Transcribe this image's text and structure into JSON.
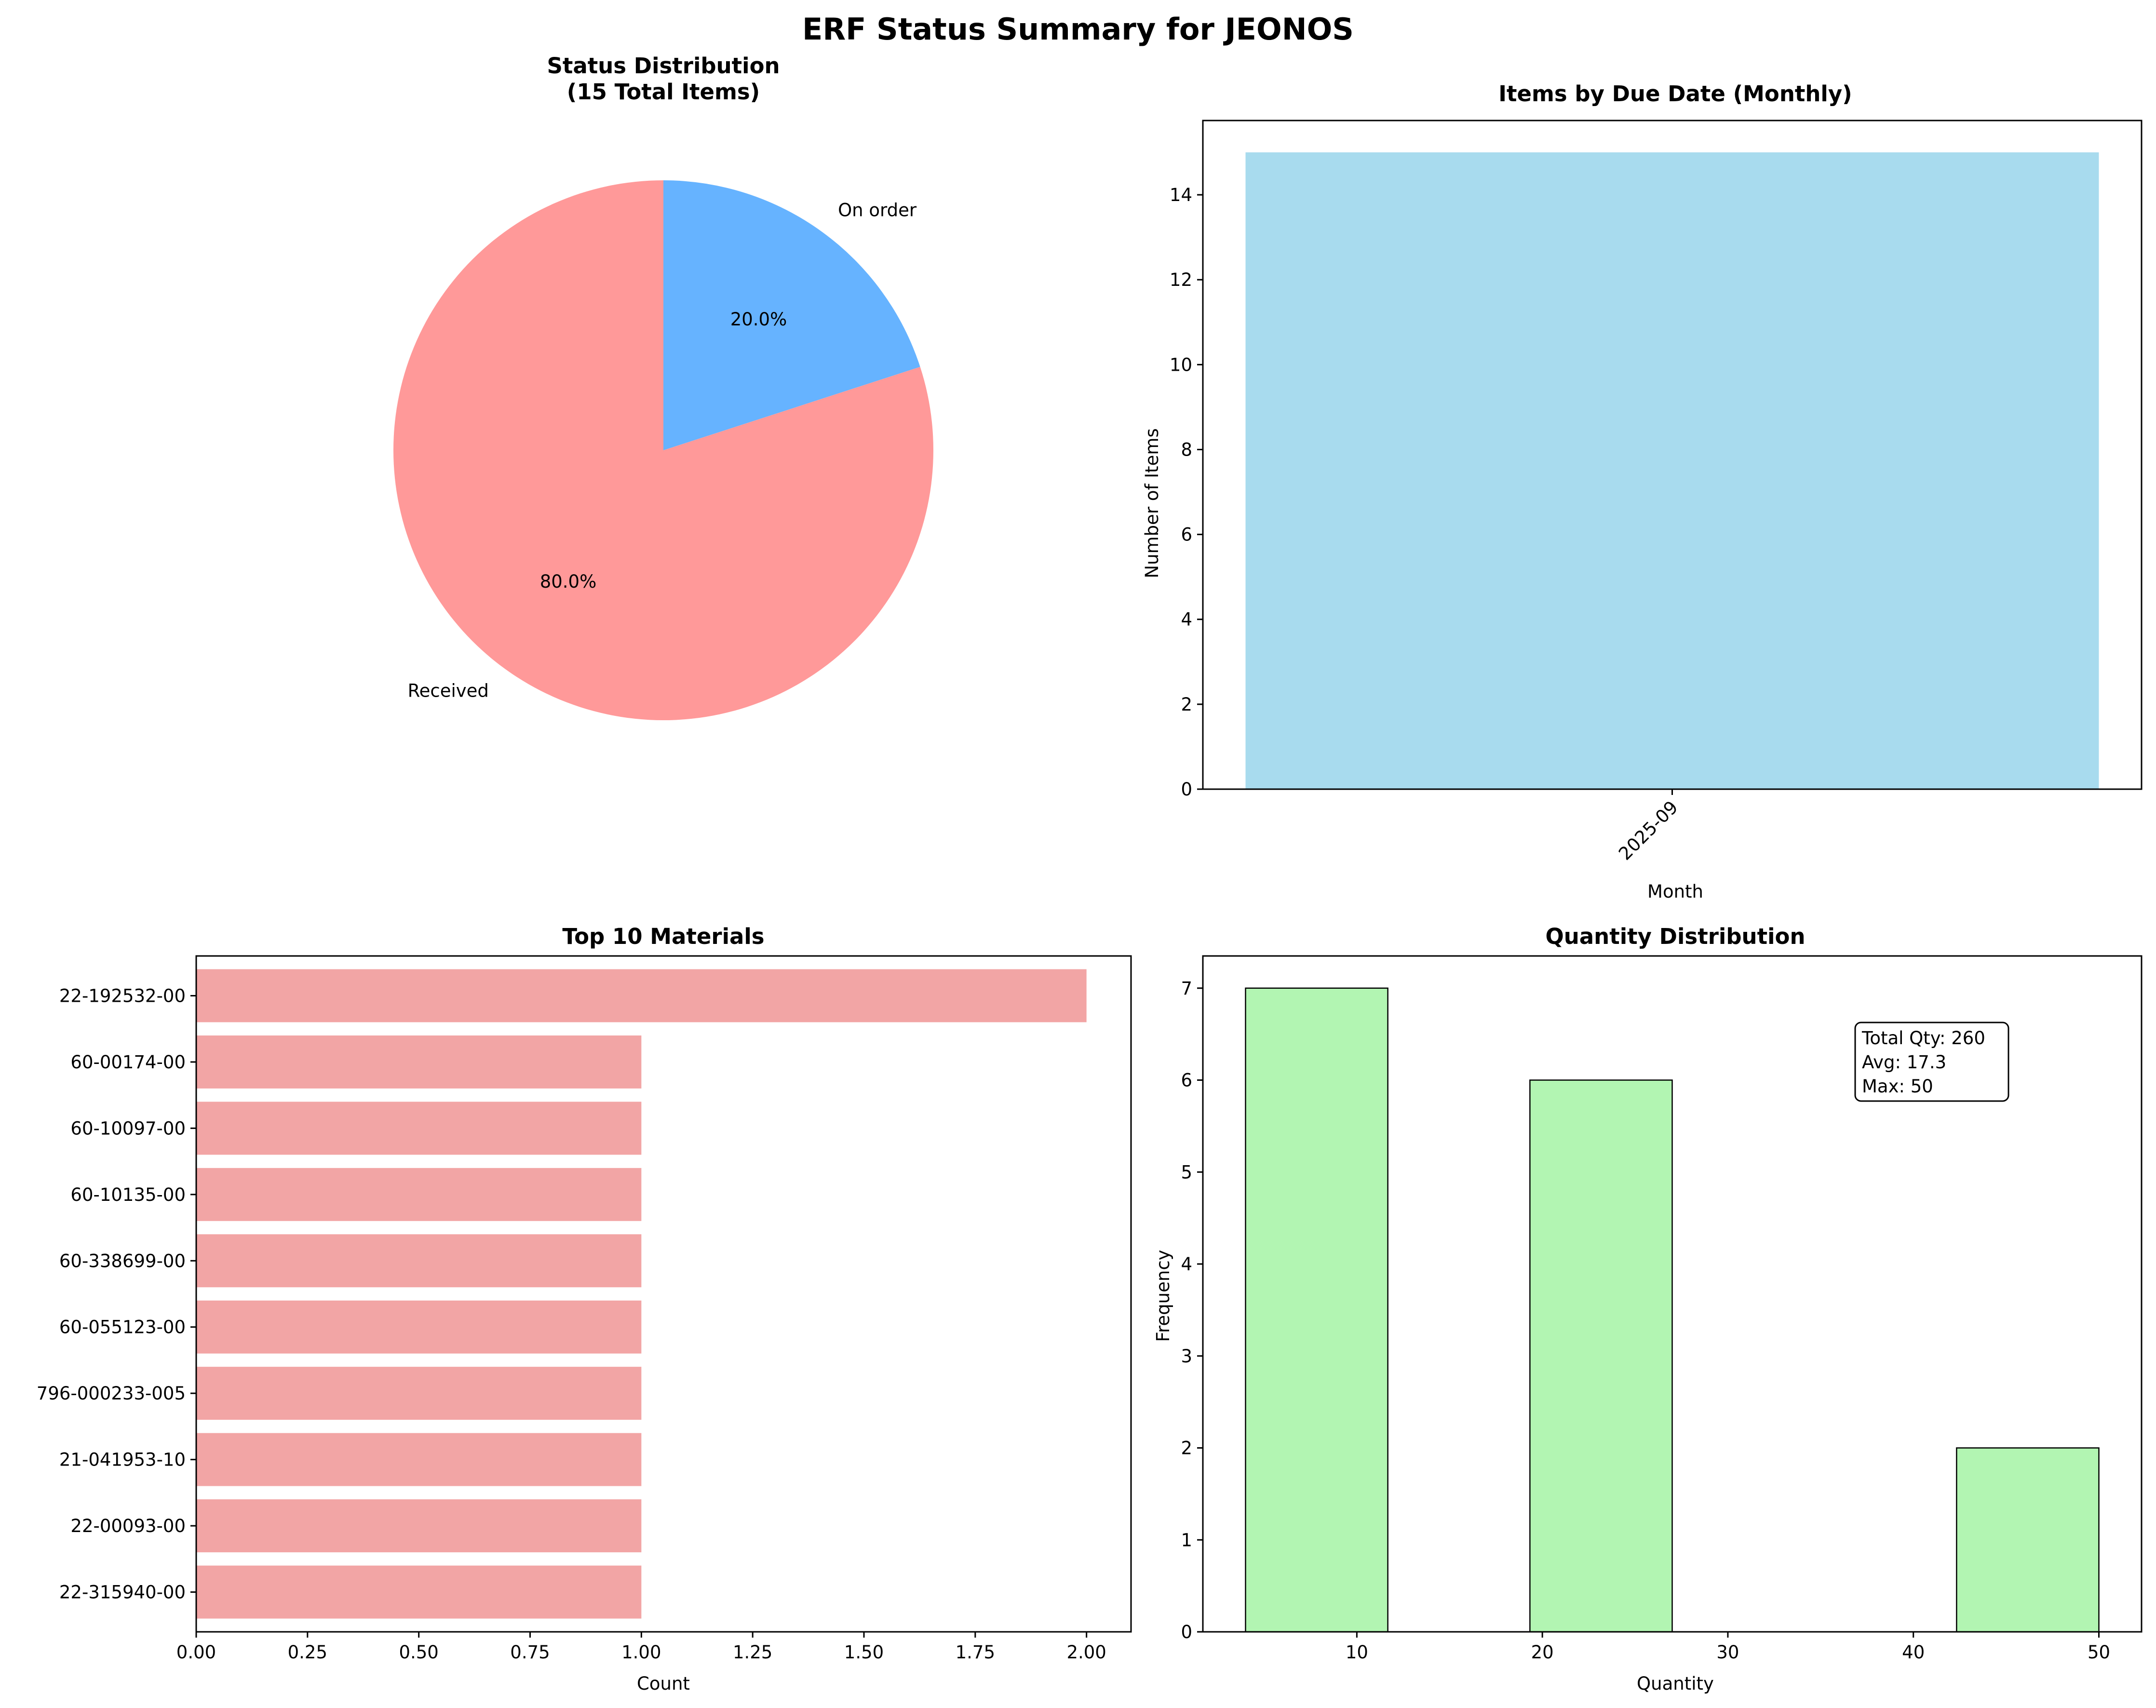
{
  "figure": {
    "suptitle": "ERF Status Summary for JEONOS"
  },
  "chart_data": [
    {
      "type": "pie",
      "title_line1": "Status Distribution",
      "title_line2": "(15 Total Items)",
      "labels": [
        "Received",
        "On order"
      ],
      "values": [
        80.0,
        20.0
      ],
      "autopct": [
        "80.0%",
        "20.0%"
      ],
      "colors": [
        "#ff9999",
        "#66b3ff"
      ]
    },
    {
      "type": "bar",
      "title": "Items by Due Date (Monthly)",
      "categories": [
        "2025-09"
      ],
      "values": [
        15
      ],
      "xlabel": "Month",
      "ylabel": "Number of Items",
      "ylim": [
        0,
        15.75
      ],
      "yticks": [
        0,
        2,
        4,
        6,
        8,
        10,
        12,
        14
      ],
      "color": "#a8dbee"
    },
    {
      "type": "bar",
      "orientation": "horizontal",
      "title": "Top 10 Materials",
      "categories": [
        "22-192532-00",
        "60-00174-00",
        "60-10097-00",
        "60-10135-00",
        "60-338699-00",
        "60-055123-00",
        "796-000233-005",
        "21-041953-10",
        "22-00093-00",
        "22-315940-00"
      ],
      "values": [
        2,
        1,
        1,
        1,
        1,
        1,
        1,
        1,
        1,
        1
      ],
      "xlabel": "Count",
      "xlim": [
        0,
        2.1
      ],
      "xticks": [
        "0.00",
        "0.25",
        "0.50",
        "0.75",
        "1.00",
        "1.25",
        "1.50",
        "1.75",
        "2.00"
      ],
      "color": "#f2a5a5"
    },
    {
      "type": "bar",
      "subtype": "histogram",
      "title": "Quantity Distribution",
      "bins": [
        [
          4,
          11.67
        ],
        [
          19.33,
          27
        ],
        [
          42.33,
          50
        ]
      ],
      "values": [
        7,
        6,
        2
      ],
      "xlabel": "Quantity",
      "ylabel": "Frequency",
      "xlim": [
        1.7,
        52.3
      ],
      "ylim": [
        0,
        7.35
      ],
      "xticks": [
        10,
        20,
        30,
        40,
        50
      ],
      "yticks": [
        0,
        1,
        2,
        3,
        4,
        5,
        6,
        7
      ],
      "color": "#b2f5b2",
      "stats": [
        "Total Qty: 260",
        "Avg: 17.3",
        "Max: 50"
      ]
    }
  ]
}
